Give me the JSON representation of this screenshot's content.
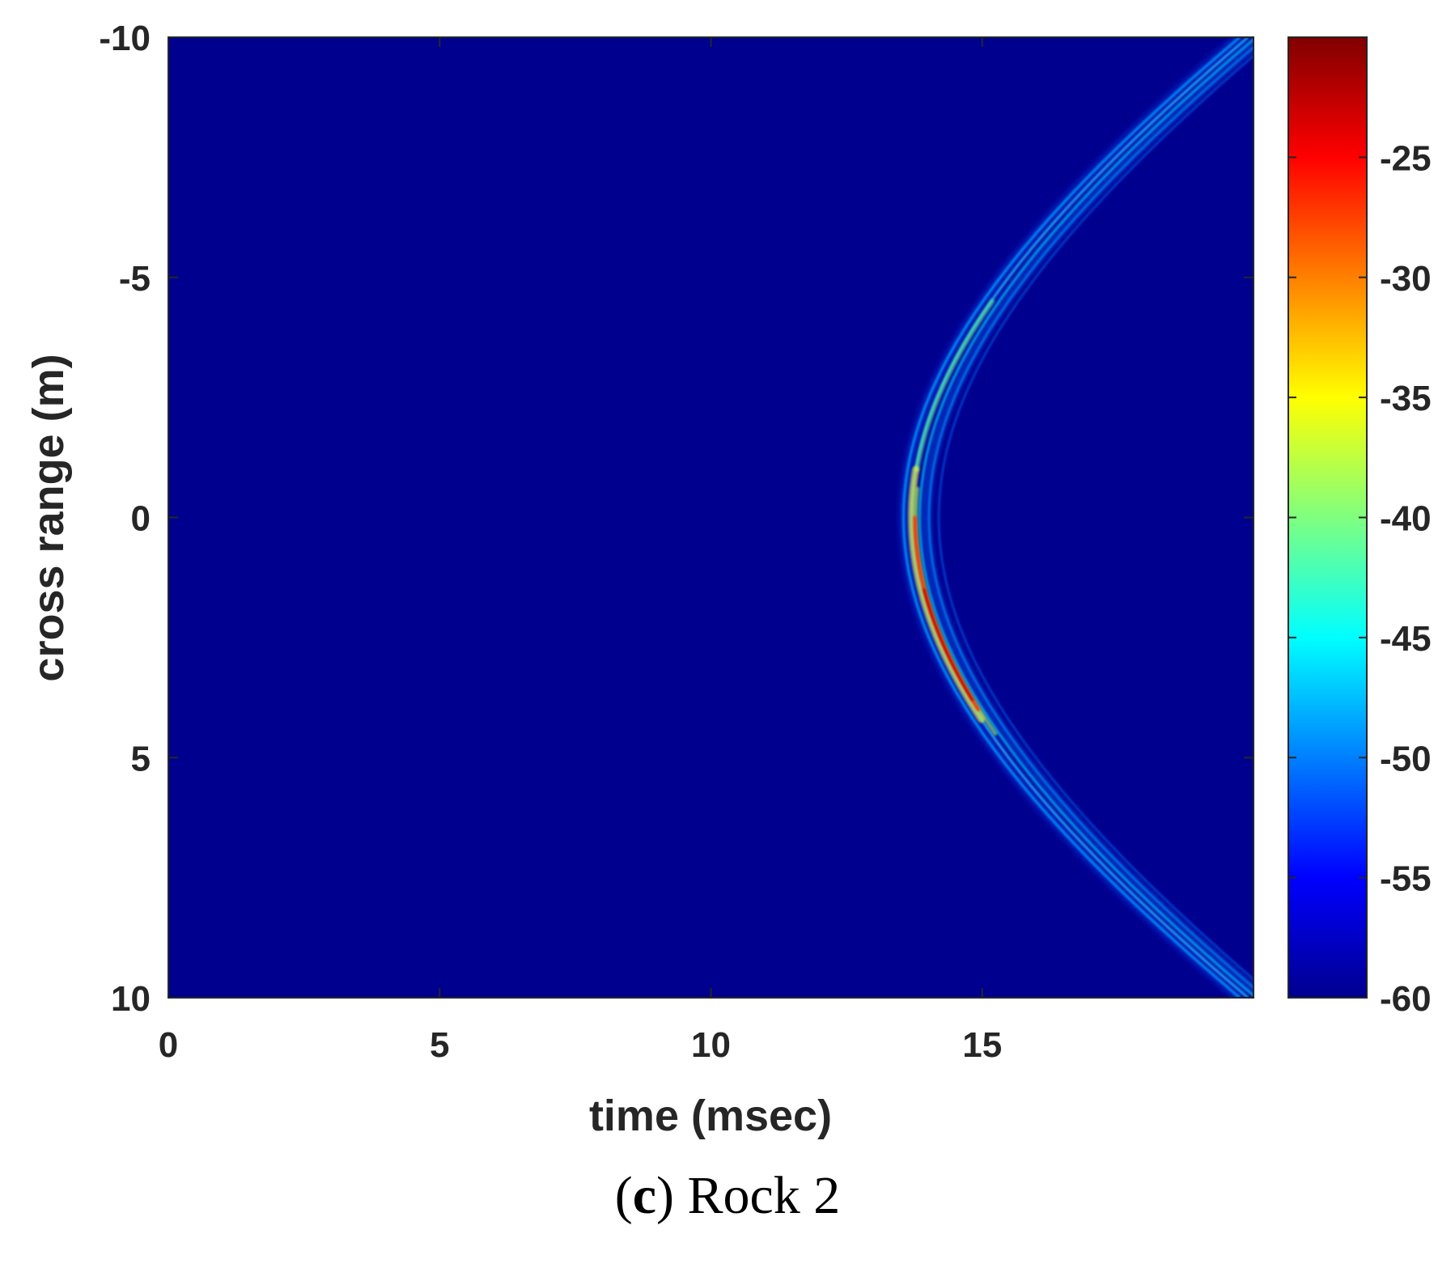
{
  "caption": {
    "letter": "c",
    "text": "Rock 2"
  },
  "chart_data": {
    "type": "heatmap",
    "xlabel": "time (msec)",
    "ylabel": "cross range (m)",
    "xlim": [
      0,
      20
    ],
    "ylim": [
      -10,
      10
    ],
    "y_direction": "reversed (top = -10)",
    "xticks": [
      0,
      5,
      10,
      15
    ],
    "xtick_labels": [
      "0",
      "5",
      "10",
      "15"
    ],
    "yticks": [
      -10,
      -5,
      0,
      5,
      10
    ],
    "ytick_labels": [
      "-10",
      "-5",
      "0",
      "5",
      "10"
    ],
    "colormap": "jet",
    "clim": [
      -60,
      -20
    ],
    "colorbar_ticks": [
      -25,
      -30,
      -35,
      -40,
      -45,
      -50,
      -55,
      -60
    ],
    "colorbar_tick_labels": [
      "-25",
      "-30",
      "-35",
      "-40",
      "-45",
      "-50",
      "-55",
      "-60"
    ],
    "background_level": -60,
    "feature": {
      "shape": "hyperbola opening to the right",
      "apex": {
        "time_ms": 13.6,
        "cross_range_m": 0
      },
      "ends": [
        {
          "time_ms": 19.8,
          "cross_range_m": -10
        },
        {
          "time_ms": 19.8,
          "cross_range_m": 10
        }
      ],
      "peak_level_dB": -22,
      "peak_region": {
        "cross_range_m": [
          0,
          4
        ],
        "time_ms": [
          13.8,
          15.0
        ]
      }
    },
    "grid": false,
    "legend": "colorbar right"
  }
}
